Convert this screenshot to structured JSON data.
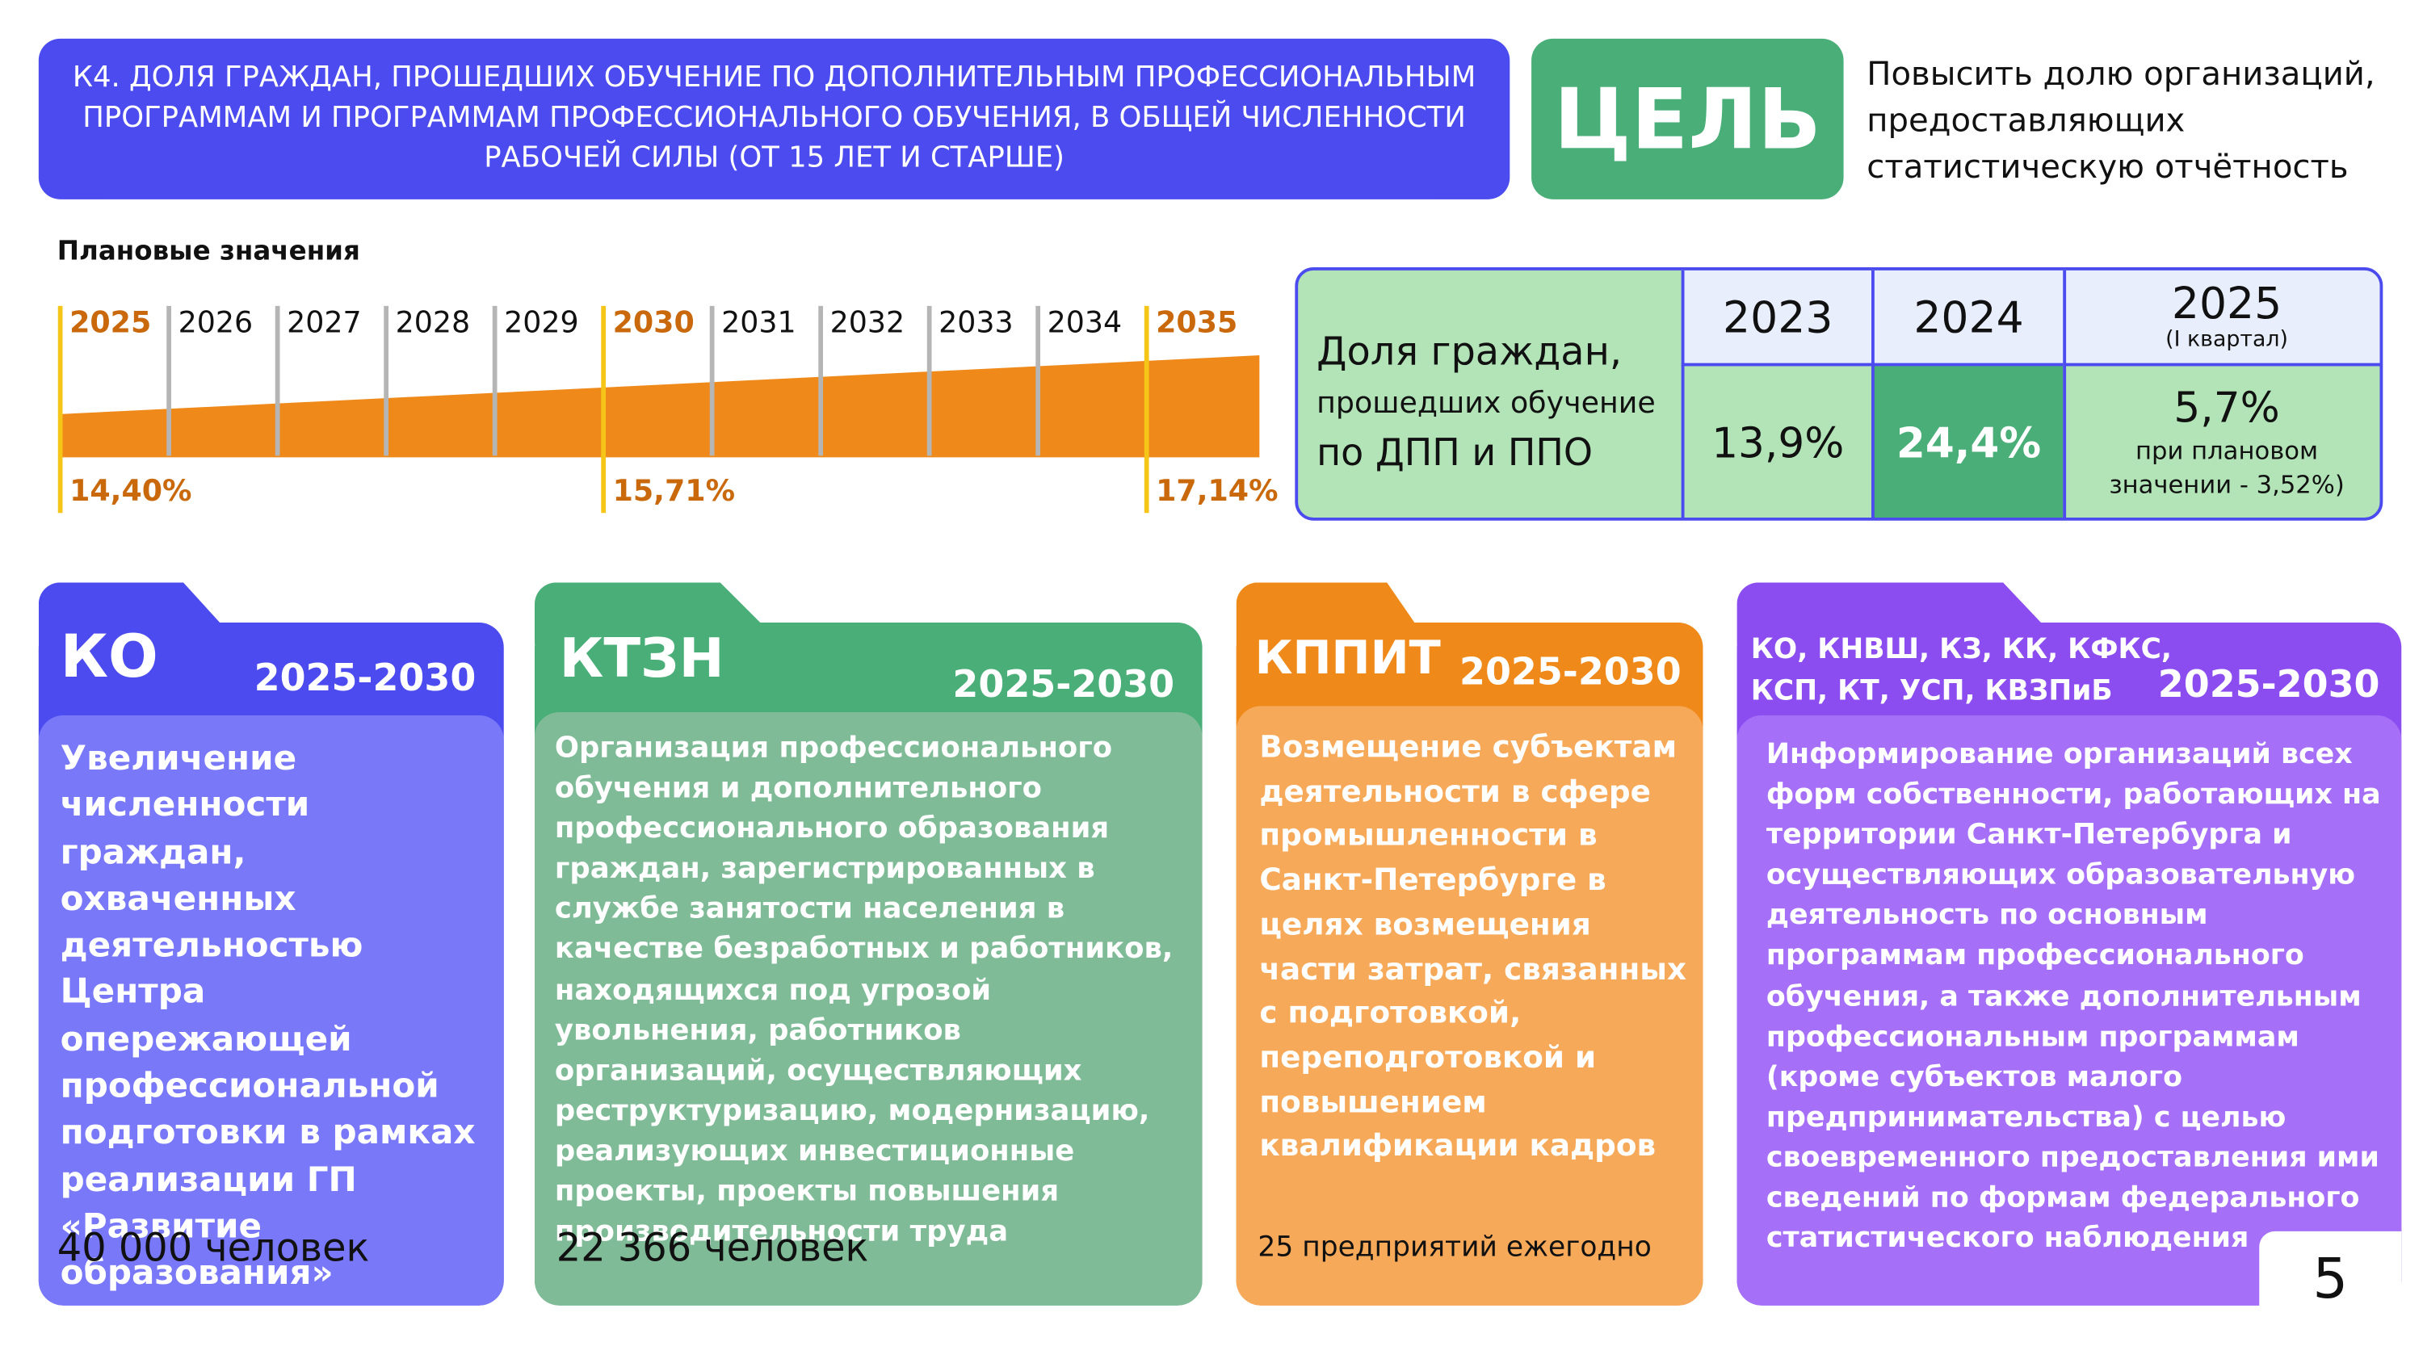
{
  "header": {
    "title": "К4. ДОЛЯ ГРАЖДАН, ПРОШЕДШИХ ОБУЧЕНИЕ ПО ДОПОЛНИТЕЛЬНЫМ ПРОФЕССИОНАЛЬНЫМ ПРОГРАММАМ И ПРОГРАММАМ ПРОФЕССИОНАЛЬНОГО ОБУЧЕНИЯ, В ОБЩЕЙ ЧИСЛЕННОСТИ РАБОЧЕЙ СИЛЫ (ОТ 15 ЛЕТ И СТАРШЕ)",
    "goal_label": "ЦЕЛЬ",
    "goal_text": "Повысить долю организаций, предоставляющих статистическую отчётность"
  },
  "plan": {
    "title": "Плановые значения",
    "years": [
      "2025",
      "2026",
      "2027",
      "2028",
      "2029",
      "2030",
      "2031",
      "2032",
      "2033",
      "2034",
      "2035"
    ],
    "values": [
      "14,40%",
      null,
      null,
      null,
      null,
      "15,71%",
      null,
      null,
      null,
      null,
      "17,14%"
    ]
  },
  "table": {
    "label": [
      "Доля граждан,",
      "прошедших обучение",
      "по ДПП и ППО"
    ],
    "columns": [
      {
        "year": "2023",
        "value": "13,9%"
      },
      {
        "year": "2024",
        "value": "24,4%"
      },
      {
        "year": "2025",
        "note": "(I квартал)",
        "value": "5,7%",
        "detail": "при плановом значении - 3,52%)"
      }
    ]
  },
  "cards": [
    {
      "org": "КО",
      "period": "2025-2030",
      "text": "Увеличение численности граждан, охваченных деятельностью Центра опережающей профессиональной подготовки в рамках реализации ГП «Развитие образования»",
      "result": "40 000 человек"
    },
    {
      "org": "КТЗН",
      "period": "2025-2030",
      "text": "Организация профессионального обучения и дополнительного профессионального образования граждан, зарегистрированных в службе занятости населения в качестве безработных и работников, находящихся под угрозой увольнения, работников организаций, осуществляющих реструктуризацию, модернизацию, реализующих инвестиционные проекты, проекты повышения производительности труда",
      "result": "22 366 человек"
    },
    {
      "org": "КППИТ",
      "period": "2025-2030",
      "text": "Возмещение субъектам деятельности в сфере промышленности в Санкт-Петербурге в целях возмещения части затрат, связанных с подготовкой, переподготовкой и повышением квалификации кадров",
      "result": "25 предприятий ежегодно"
    },
    {
      "org": "КО, КНВШ, КЗ, КК, КФКС, КСП, КТ, УСП, КВЗПиБ",
      "period": "2025-2030",
      "text": "Информирование организаций всех форм собственности, работающих на территории Санкт-Петербурга и осуществляющих образовательную деятельность по основным программам профессионального обучения, а также дополнительным профессиональным программам (кроме субъектов малого предпринимательства) с целью своевременного предоставления ими сведений по формам федерального статистического наблюдения"
    }
  ],
  "page_number": "5"
}
